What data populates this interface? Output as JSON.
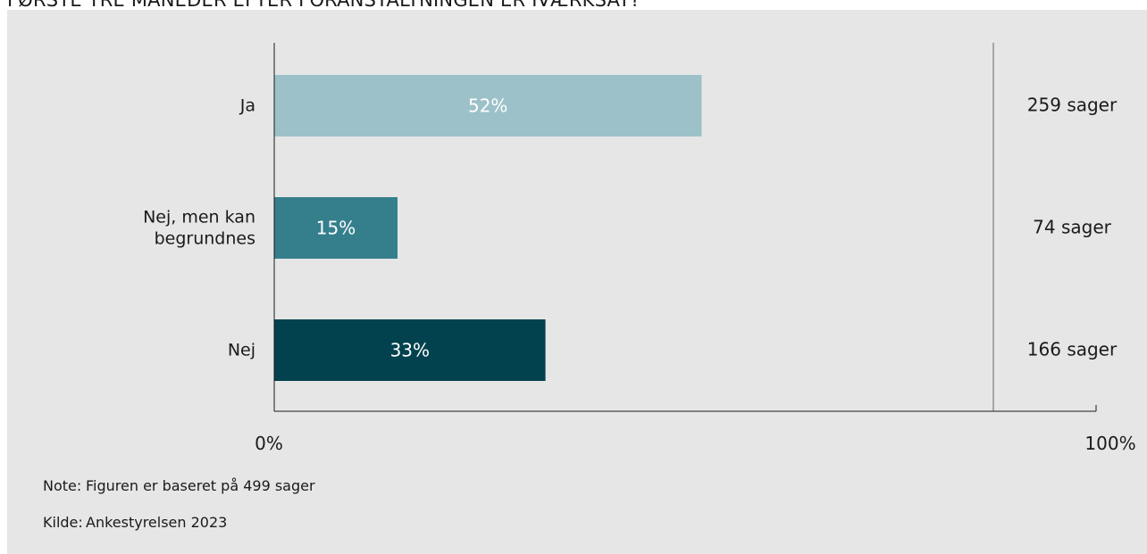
{
  "title": "FØRSTE TRE MÅNEDER EFTER FORANSTALTNINGEN ER IVÆRKSAT?",
  "note": {
    "label": "Note:",
    "text": "Figuren er baseret på 499 sager"
  },
  "source": {
    "label": "Kilde:",
    "text": "Ankestyrelsen 2023"
  },
  "chart_data": {
    "type": "bar",
    "orientation": "horizontal",
    "categories": [
      "Ja",
      "Nej, men kan begrundnes",
      "Nej"
    ],
    "category_lines": [
      [
        "Ja"
      ],
      [
        "Nej, men kan",
        "begrundnes"
      ],
      [
        "Nej"
      ]
    ],
    "values": [
      52,
      15,
      33
    ],
    "value_labels": [
      "52%",
      "15%",
      "33%"
    ],
    "counts": [
      "259 sager",
      "74 sager",
      "166 sager"
    ],
    "bar_colors": [
      "#9cc1c8",
      "#357f8c",
      "#02424f"
    ],
    "xlim": [
      0,
      100
    ],
    "x_tick_labels": [
      "0%",
      "100%"
    ],
    "xlabel": "",
    "ylabel": "",
    "grid": false
  }
}
